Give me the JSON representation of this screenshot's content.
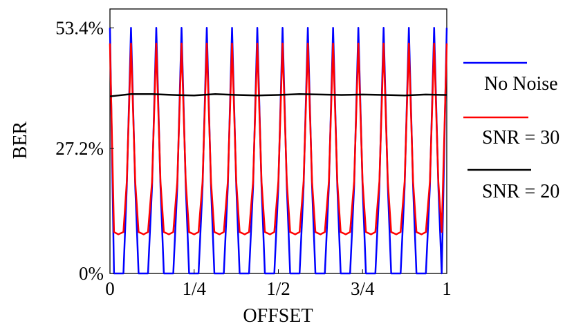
{
  "chart_data": {
    "type": "line",
    "xlabel": "OFFSET",
    "ylabel": "BER",
    "xlim": [
      0,
      1
    ],
    "ylim": [
      0,
      0.575
    ],
    "x_ticks": [
      {
        "value": 0,
        "label": "0"
      },
      {
        "value": 0.25,
        "label": "1/4"
      },
      {
        "value": 0.5,
        "label": "1/2"
      },
      {
        "value": 0.75,
        "label": "3/4"
      },
      {
        "value": 1,
        "label": "1"
      }
    ],
    "y_ticks": [
      {
        "value": 0,
        "label": "0%"
      },
      {
        "value": 0.272,
        "label": "27.2%"
      },
      {
        "value": 0.534,
        "label": "53.4%"
      }
    ],
    "grid": false,
    "legend_position": "right",
    "series": [
      {
        "name": "No Noise",
        "color": "#0000ff",
        "x": [
          0,
          0.012,
          0.04,
          0.05,
          0.0625,
          0.075,
          0.085,
          0.113,
          0.125,
          0.1375,
          0.15,
          0.16,
          0.188,
          0.2,
          0.2125,
          0.225,
          0.235,
          0.263,
          0.275,
          0.2875,
          0.3,
          0.31,
          0.338,
          0.35,
          0.3625,
          0.375,
          0.385,
          0.413,
          0.425,
          0.4375,
          0.45,
          0.46,
          0.488,
          0.5,
          0.5125,
          0.525,
          0.535,
          0.563,
          0.575,
          0.5875,
          0.6,
          0.61,
          0.638,
          0.65,
          0.6625,
          0.675,
          0.685,
          0.713,
          0.725,
          0.7375,
          0.75,
          0.76,
          0.788,
          0.8,
          0.8125,
          0.825,
          0.835,
          0.863,
          0.875,
          0.8875,
          0.9,
          0.91,
          0.938,
          0.95,
          0.9625,
          0.975,
          0.985,
          1.0
        ],
        "y": [
          0.534,
          0,
          0,
          0.19,
          0.534,
          0.19,
          0,
          0,
          0.19,
          0.534,
          0.19,
          0,
          0,
          0.19,
          0.534,
          0.19,
          0,
          0,
          0.19,
          0.534,
          0.19,
          0,
          0,
          0.19,
          0.534,
          0.19,
          0,
          0,
          0.19,
          0.534,
          0.19,
          0,
          0,
          0.19,
          0.534,
          0.19,
          0,
          0,
          0.19,
          0.534,
          0.19,
          0,
          0,
          0.19,
          0.534,
          0.19,
          0,
          0,
          0.19,
          0.534,
          0.19,
          0,
          0,
          0.19,
          0.534,
          0.19,
          0,
          0,
          0.19,
          0.534,
          0.19,
          0,
          0,
          0.19,
          0.534,
          0.19,
          0,
          0.534
        ]
      },
      {
        "name": "SNR = 30",
        "color": "#ff0000",
        "x": [
          0,
          0.012,
          0.025,
          0.04,
          0.05,
          0.0625,
          0.075,
          0.085,
          0.1,
          0.113,
          0.125,
          0.1375,
          0.15,
          0.16,
          0.175,
          0.188,
          0.2,
          0.2125,
          0.225,
          0.235,
          0.25,
          0.263,
          0.275,
          0.2875,
          0.3,
          0.31,
          0.325,
          0.338,
          0.35,
          0.3625,
          0.375,
          0.385,
          0.4,
          0.413,
          0.425,
          0.4375,
          0.45,
          0.46,
          0.475,
          0.488,
          0.5,
          0.5125,
          0.525,
          0.535,
          0.55,
          0.563,
          0.575,
          0.5875,
          0.6,
          0.61,
          0.625,
          0.638,
          0.65,
          0.6625,
          0.675,
          0.685,
          0.7,
          0.713,
          0.725,
          0.7375,
          0.75,
          0.76,
          0.775,
          0.788,
          0.8,
          0.8125,
          0.825,
          0.835,
          0.85,
          0.863,
          0.875,
          0.8875,
          0.9,
          0.91,
          0.925,
          0.938,
          0.95,
          0.9625,
          0.975,
          0.985,
          1.0
        ],
        "y": [
          0.5,
          0.09,
          0.085,
          0.09,
          0.2,
          0.5,
          0.2,
          0.09,
          0.085,
          0.09,
          0.2,
          0.5,
          0.2,
          0.09,
          0.085,
          0.09,
          0.2,
          0.5,
          0.2,
          0.09,
          0.085,
          0.09,
          0.2,
          0.5,
          0.2,
          0.09,
          0.085,
          0.09,
          0.2,
          0.5,
          0.2,
          0.09,
          0.085,
          0.09,
          0.2,
          0.5,
          0.2,
          0.09,
          0.085,
          0.09,
          0.2,
          0.5,
          0.2,
          0.09,
          0.085,
          0.09,
          0.2,
          0.5,
          0.2,
          0.09,
          0.085,
          0.09,
          0.2,
          0.5,
          0.2,
          0.09,
          0.085,
          0.09,
          0.2,
          0.5,
          0.2,
          0.09,
          0.085,
          0.09,
          0.2,
          0.5,
          0.2,
          0.09,
          0.085,
          0.09,
          0.2,
          0.5,
          0.2,
          0.09,
          0.085,
          0.09,
          0.2,
          0.5,
          0.2,
          0.09,
          0.5
        ]
      },
      {
        "name": "SNR = 20",
        "color": "#000000",
        "x": [
          0,
          0.0625,
          0.125,
          0.1875,
          0.25,
          0.3125,
          0.375,
          0.4375,
          0.5,
          0.5625,
          0.625,
          0.6875,
          0.75,
          0.8125,
          0.875,
          0.9375,
          1.0
        ],
        "y": [
          0.385,
          0.39,
          0.39,
          0.388,
          0.387,
          0.39,
          0.388,
          0.387,
          0.388,
          0.39,
          0.389,
          0.388,
          0.389,
          0.388,
          0.387,
          0.389,
          0.388
        ]
      }
    ]
  }
}
